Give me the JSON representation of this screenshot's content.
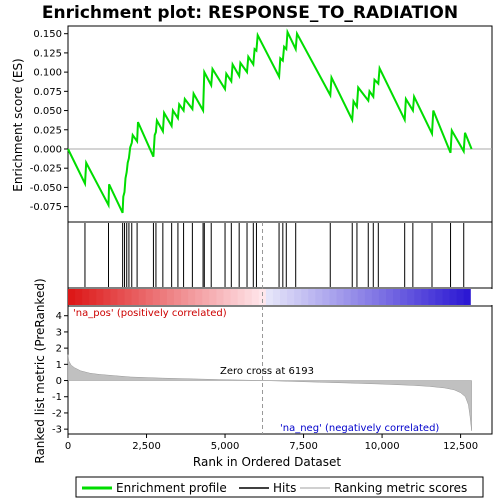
{
  "chart_data": {
    "type": "line",
    "title": "Enrichment plot: RESPONSE_TO_RADIATION",
    "es_panel": {
      "ylabel": "Enrichment score (ES)",
      "ylim": [
        -0.095,
        0.16
      ],
      "yticks": [
        -0.075,
        -0.05,
        -0.025,
        0.0,
        0.025,
        0.05,
        0.075,
        0.1,
        0.125,
        0.15
      ],
      "ytick_labels": [
        "-0.075",
        "-0.050",
        "-0.025",
        "0.000",
        "0.025",
        "0.050",
        "0.075",
        "0.100",
        "0.125",
        "0.150"
      ],
      "series": [
        {
          "name": "Enrichment profile",
          "color": "#00dd00",
          "x": [
            0,
            540,
            580,
            1290,
            1310,
            1740,
            1760,
            1800,
            1830,
            1870,
            1900,
            1940,
            1980,
            2030,
            2060,
            2200,
            2230,
            2720,
            2760,
            2800,
            2830,
            3020,
            3060,
            3300,
            3340,
            3500,
            3540,
            3680,
            3720,
            3960,
            4000,
            4300,
            4340,
            4560,
            4600,
            5000,
            5040,
            5200,
            5240,
            5450,
            5490,
            5700,
            5740,
            5900,
            5940,
            6000,
            6040,
            6720,
            6760,
            6840,
            6880,
            6950,
            6990,
            7250,
            7290,
            8350,
            8390,
            9050,
            9090,
            9200,
            9240,
            9560,
            9600,
            9720,
            9760,
            9880,
            9920,
            10720,
            10760,
            10980,
            11020,
            11590,
            11630,
            12180,
            12220,
            12600,
            12640,
            12850
          ],
          "y": [
            0.0,
            -0.045,
            -0.018,
            -0.073,
            -0.046,
            -0.083,
            -0.062,
            -0.056,
            -0.038,
            -0.03,
            -0.018,
            -0.012,
            0.002,
            0.008,
            0.018,
            0.01,
            0.035,
            -0.01,
            0.018,
            0.022,
            0.037,
            0.023,
            0.047,
            0.03,
            0.05,
            0.04,
            0.058,
            0.05,
            0.065,
            0.052,
            0.072,
            0.05,
            0.1,
            0.083,
            0.104,
            0.078,
            0.098,
            0.088,
            0.11,
            0.095,
            0.112,
            0.1,
            0.12,
            0.11,
            0.13,
            0.128,
            0.148,
            0.094,
            0.118,
            0.115,
            0.133,
            0.13,
            0.152,
            0.13,
            0.15,
            0.07,
            0.093,
            0.038,
            0.062,
            0.055,
            0.08,
            0.063,
            0.075,
            0.068,
            0.09,
            0.085,
            0.105,
            0.038,
            0.065,
            0.05,
            0.068,
            0.02,
            0.05,
            -0.005,
            0.024,
            -0.003,
            0.021,
            0.0
          ]
        }
      ]
    },
    "hits_panel": {
      "hit_positions": [
        540,
        1290,
        1740,
        1800,
        1870,
        1940,
        2030,
        2200,
        2720,
        2800,
        3020,
        3300,
        3500,
        3680,
        3960,
        4300,
        4340,
        4560,
        5000,
        5200,
        5450,
        5700,
        5900,
        6000,
        6720,
        6840,
        6950,
        7250,
        8350,
        9050,
        9200,
        9560,
        9720,
        9880,
        10720,
        10980,
        11590,
        12180,
        12600
      ]
    },
    "rank_panel": {
      "ylabel": "Ranked list metric (PreRanked)",
      "xlabel": "Rank in Ordered Dataset",
      "ylim": [
        -3.3,
        4.6
      ],
      "yticks": [
        -3,
        -2,
        -1,
        0,
        1,
        2,
        3,
        4
      ],
      "ytick_labels": [
        "-3",
        "-2",
        "-1",
        "0",
        "1",
        "2",
        "3",
        "4"
      ],
      "xlim": [
        0,
        13500
      ],
      "xticks": [
        0,
        2500,
        5000,
        7500,
        10000,
        12500
      ],
      "xtick_labels": [
        "0",
        "2,500",
        "5,000",
        "7,500",
        "10,000",
        "12,500"
      ],
      "metric_x": [
        0,
        30,
        100,
        200,
        400,
        700,
        1000,
        1500,
        2000,
        3000,
        4000,
        5000,
        6193,
        7000,
        8000,
        9000,
        10000,
        11000,
        11500,
        12000,
        12300,
        12500,
        12650,
        12750,
        12800,
        12850
      ],
      "metric_y": [
        1.6,
        1.2,
        0.95,
        0.8,
        0.6,
        0.45,
        0.38,
        0.3,
        0.22,
        0.15,
        0.1,
        0.05,
        0.0,
        -0.05,
        -0.1,
        -0.16,
        -0.22,
        -0.3,
        -0.36,
        -0.46,
        -0.58,
        -0.75,
        -1.0,
        -1.5,
        -2.2,
        -3.1
      ],
      "zero_cross_label": "Zero cross at 6193",
      "zero_cross_x": 6193,
      "pos_label": "'na_pos' (positively correlated)",
      "neg_label": "'na_neg' (negatively correlated)",
      "pos_color": "#cc0000",
      "neg_color": "#0000cc",
      "fill_color": "#c0c0c0"
    },
    "legend": [
      {
        "label": "Enrichment profile",
        "color": "#00dd00",
        "kind": "line"
      },
      {
        "label": "Hits",
        "color": "#000000",
        "kind": "line"
      },
      {
        "label": "Ranking metric scores",
        "color": "#c0c0c0",
        "kind": "line"
      }
    ],
    "legend_placement": "bottom",
    "grid": false
  }
}
